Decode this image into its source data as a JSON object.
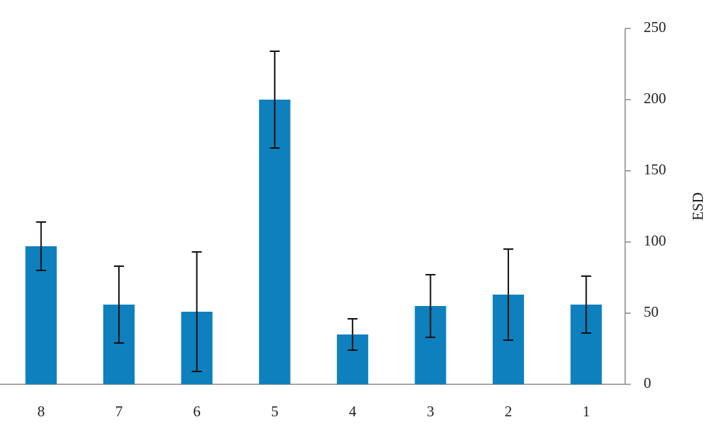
{
  "chart_data": {
    "type": "bar",
    "y_label": "ESD",
    "categories": [
      "8",
      "7",
      "6",
      "5",
      "4",
      "3",
      "2",
      "1"
    ],
    "values": [
      97,
      56,
      51,
      200,
      35,
      55,
      63,
      56
    ],
    "errors": [
      17,
      27,
      42,
      34,
      11,
      22,
      32,
      20
    ],
    "color": "#0e80bd",
    "ylim": [
      0,
      250
    ],
    "yticks": [
      0,
      50,
      100,
      150,
      200,
      250
    ],
    "y_axis_side": "right",
    "grid": false
  }
}
